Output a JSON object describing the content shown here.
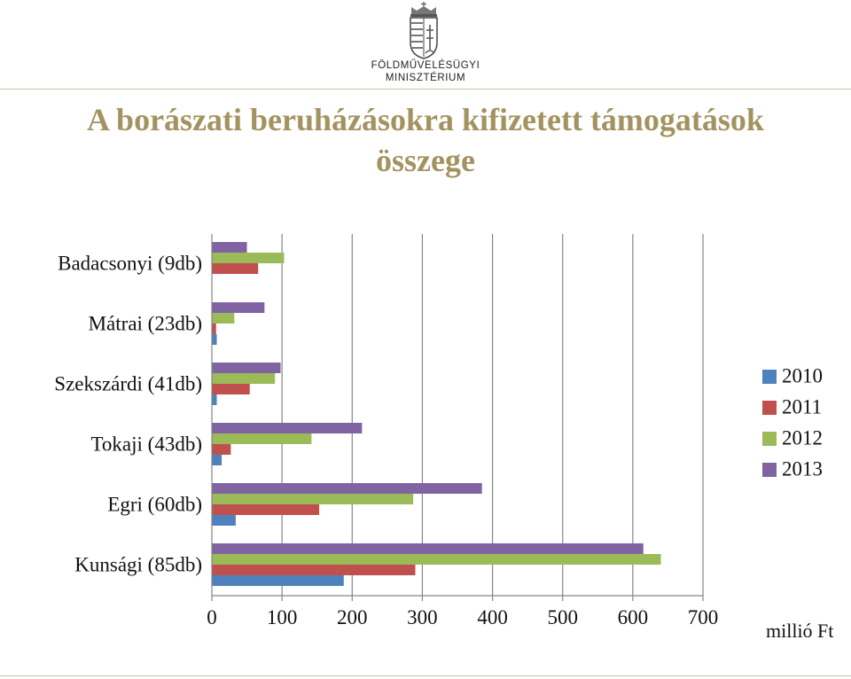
{
  "header": {
    "ministry_line1": "FÖLDMŰVELÉSÜGYI",
    "ministry_line2": "MINISZTÉRIUM"
  },
  "chart_data": {
    "type": "bar",
    "orientation": "horizontal",
    "title": "A borászati beruházásokra kifizetett támogatások összege",
    "categories": [
      "Badacsonyi (9db)",
      "Mátrai (23db)",
      "Szekszárdi (41db)",
      "Tokaji (43db)",
      "Egri (60db)",
      "Kunsági (85db)"
    ],
    "series": [
      {
        "name": "2010",
        "color": "#4f81bd",
        "values": [
          0,
          7,
          7,
          14,
          34,
          188
        ]
      },
      {
        "name": "2011",
        "color": "#c0504d",
        "values": [
          66,
          6,
          54,
          27,
          153,
          290
        ]
      },
      {
        "name": "2012",
        "color": "#9bbb59",
        "values": [
          103,
          32,
          90,
          142,
          287,
          640
        ]
      },
      {
        "name": "2013",
        "color": "#8064a2",
        "values": [
          50,
          75,
          98,
          214,
          385,
          615
        ]
      }
    ],
    "xlim": [
      0,
      700
    ],
    "xticks": [
      0,
      100,
      200,
      300,
      400,
      500,
      600,
      700
    ],
    "unit": "millió Ft",
    "grid": "vertical",
    "legend": "right"
  }
}
